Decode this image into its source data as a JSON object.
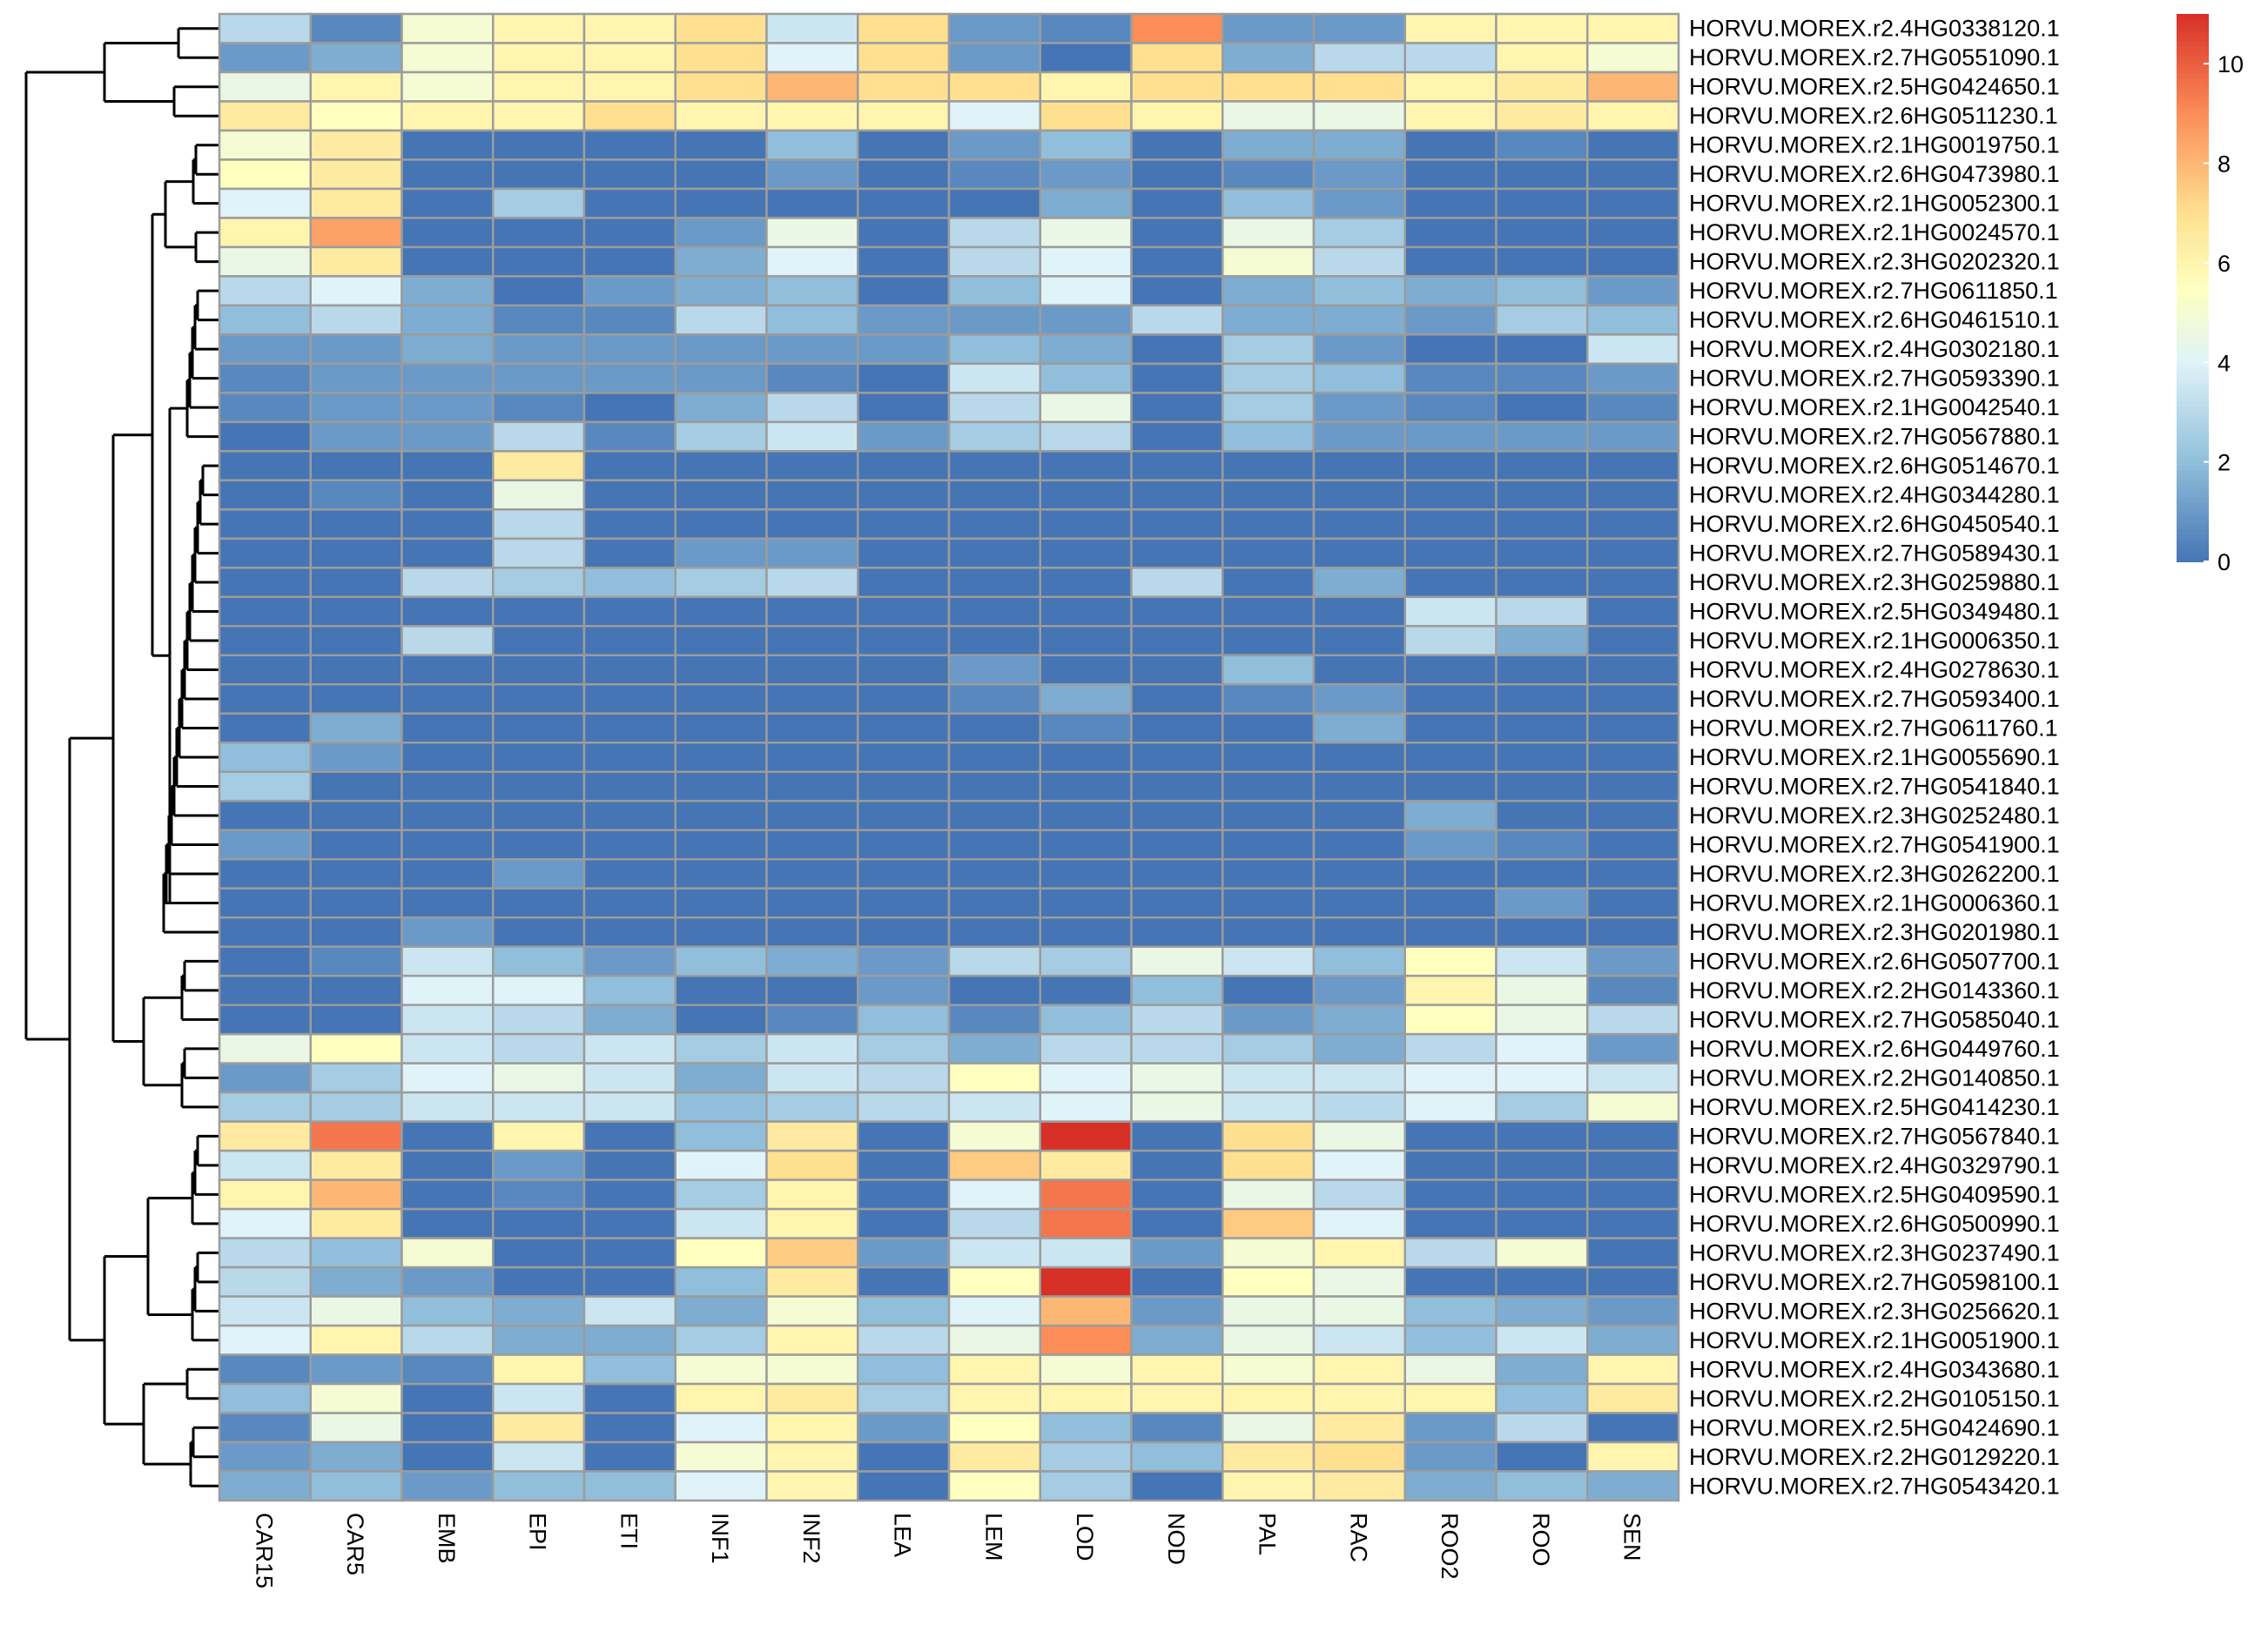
{
  "chart_data": {
    "type": "heatmap",
    "title": "",
    "columns": [
      "CAR15",
      "CAR5",
      "EMB",
      "EPI",
      "ETI",
      "INF1",
      "INF2",
      "LEA",
      "LEM",
      "LOD",
      "NOD",
      "PAL",
      "RAC",
      "ROO2",
      "ROO",
      "SEN"
    ],
    "rows": [
      "HORVU.MOREX.r2.4HG0338120.1",
      "HORVU.MOREX.r2.7HG0551090.1",
      "HORVU.MOREX.r2.5HG0424650.1",
      "HORVU.MOREX.r2.6HG0511230.1",
      "HORVU.MOREX.r2.1HG0019750.1",
      "HORVU.MOREX.r2.6HG0473980.1",
      "HORVU.MOREX.r2.1HG0052300.1",
      "HORVU.MOREX.r2.1HG0024570.1",
      "HORVU.MOREX.r2.3HG0202320.1",
      "HORVU.MOREX.r2.7HG0611850.1",
      "HORVU.MOREX.r2.6HG0461510.1",
      "HORVU.MOREX.r2.4HG0302180.1",
      "HORVU.MOREX.r2.7HG0593390.1",
      "HORVU.MOREX.r2.1HG0042540.1",
      "HORVU.MOREX.r2.7HG0567880.1",
      "HORVU.MOREX.r2.6HG0514670.1",
      "HORVU.MOREX.r2.4HG0344280.1",
      "HORVU.MOREX.r2.6HG0450540.1",
      "HORVU.MOREX.r2.7HG0589430.1",
      "HORVU.MOREX.r2.3HG0259880.1",
      "HORVU.MOREX.r2.5HG0349480.1",
      "HORVU.MOREX.r2.1HG0006350.1",
      "HORVU.MOREX.r2.4HG0278630.1",
      "HORVU.MOREX.r2.7HG0593400.1",
      "HORVU.MOREX.r2.7HG0611760.1",
      "HORVU.MOREX.r2.1HG0055690.1",
      "HORVU.MOREX.r2.7HG0541840.1",
      "HORVU.MOREX.r2.3HG0252480.1",
      "HORVU.MOREX.r2.7HG0541900.1",
      "HORVU.MOREX.r2.3HG0262200.1",
      "HORVU.MOREX.r2.1HG0006360.1",
      "HORVU.MOREX.r2.3HG0201980.1",
      "HORVU.MOREX.r2.6HG0507700.1",
      "HORVU.MOREX.r2.2HG0143360.1",
      "HORVU.MOREX.r2.7HG0585040.1",
      "HORVU.MOREX.r2.6HG0449760.1",
      "HORVU.MOREX.r2.2HG0140850.1",
      "HORVU.MOREX.r2.5HG0414230.1",
      "HORVU.MOREX.r2.7HG0567840.1",
      "HORVU.MOREX.r2.4HG0329790.1",
      "HORVU.MOREX.r2.5HG0409590.1",
      "HORVU.MOREX.r2.6HG0500990.1",
      "HORVU.MOREX.r2.3HG0237490.1",
      "HORVU.MOREX.r2.7HG0598100.1",
      "HORVU.MOREX.r2.3HG0256620.1",
      "HORVU.MOREX.r2.1HG0051900.1",
      "HORVU.MOREX.r2.4HG0343680.1",
      "HORVU.MOREX.r2.2HG0105150.1",
      "HORVU.MOREX.r2.5HG0424690.1",
      "HORVU.MOREX.r2.2HG0129220.1",
      "HORVU.MOREX.r2.7HG0543420.1"
    ],
    "values": [
      [
        3,
        0.5,
        5,
        6,
        6,
        7,
        3.5,
        7,
        1,
        0.5,
        9,
        1,
        1,
        6,
        6,
        6
      ],
      [
        1,
        1.5,
        5,
        6,
        6,
        7,
        4,
        7,
        1,
        0,
        7,
        1.5,
        3,
        3,
        6,
        5
      ],
      [
        4.5,
        6,
        5,
        6,
        6,
        7,
        8,
        7,
        7,
        6,
        7,
        7,
        7,
        6,
        6.5,
        8
      ],
      [
        6.5,
        5.5,
        6,
        6,
        7,
        6,
        6,
        6,
        4,
        7,
        6,
        4.5,
        4.5,
        6,
        6.5,
        6
      ],
      [
        5,
        6.5,
        0,
        0,
        0,
        0,
        2,
        0,
        1,
        2,
        0,
        1.5,
        1.5,
        0,
        0.5,
        0
      ],
      [
        5.5,
        6.5,
        0,
        0,
        0,
        0,
        1,
        0,
        0.5,
        1,
        0,
        0.5,
        1,
        0,
        0,
        0
      ],
      [
        4,
        6.5,
        0,
        2.5,
        0,
        0,
        0,
        0,
        0,
        1.5,
        0,
        2,
        1,
        0,
        0,
        0
      ],
      [
        6,
        8.5,
        0,
        0,
        0,
        1,
        4.5,
        0,
        3,
        4.5,
        0,
        4.5,
        2.5,
        0,
        0,
        0
      ],
      [
        4.5,
        6.5,
        0,
        0,
        0,
        1.5,
        4,
        0,
        3,
        4,
        0,
        5,
        3,
        0,
        0,
        0
      ],
      [
        3,
        4,
        1.5,
        0,
        1,
        1.5,
        2,
        0,
        2,
        4,
        0,
        1.5,
        2,
        1.5,
        2,
        1
      ],
      [
        2,
        3,
        1.5,
        0.5,
        0.5,
        3,
        2,
        1,
        1,
        1,
        3,
        1.5,
        1.5,
        1,
        2.5,
        2
      ],
      [
        1,
        1,
        1.5,
        1,
        1,
        1,
        1,
        1,
        2,
        1.5,
        0,
        2.5,
        1,
        0,
        0,
        3.5
      ],
      [
        0.5,
        1,
        1,
        1,
        1,
        1,
        0.5,
        0,
        3.5,
        2,
        0,
        2.5,
        2,
        0.5,
        0.5,
        1
      ],
      [
        0.5,
        1,
        1,
        0.5,
        0,
        1.5,
        3,
        0,
        3,
        4.5,
        0,
        2.5,
        1,
        0.5,
        0,
        0.5
      ],
      [
        0,
        1,
        1,
        3,
        0.5,
        2.5,
        3.5,
        1,
        2.5,
        3,
        0,
        2,
        1,
        1,
        1,
        1
      ],
      [
        0,
        0,
        0,
        6.5,
        0,
        0,
        0,
        0,
        0,
        0,
        0,
        0,
        0,
        0,
        0,
        0
      ],
      [
        0,
        0.5,
        0,
        4.5,
        0,
        0,
        0,
        0,
        0,
        0,
        0,
        0,
        0,
        0,
        0,
        0
      ],
      [
        0,
        0,
        0,
        3,
        0,
        0,
        0,
        0,
        0,
        0,
        0,
        0,
        0,
        0,
        0,
        0
      ],
      [
        0,
        0,
        0,
        3,
        0,
        1,
        1,
        0,
        0,
        0,
        0,
        0,
        0,
        0,
        0,
        0
      ],
      [
        0,
        0,
        3,
        2.5,
        2,
        2.5,
        3,
        0,
        0,
        0,
        3,
        0,
        1.5,
        0,
        0,
        0
      ],
      [
        0,
        0,
        0,
        0,
        0,
        0,
        0,
        0,
        0,
        0,
        0,
        0,
        0,
        3.5,
        3,
        0
      ],
      [
        0,
        0,
        3,
        0,
        0,
        0,
        0,
        0,
        0,
        0,
        0,
        0,
        0,
        3,
        1.5,
        0
      ],
      [
        0,
        0,
        0,
        0,
        0,
        0,
        0,
        0,
        1,
        0,
        0,
        2,
        0,
        0,
        0,
        0
      ],
      [
        0,
        0,
        0,
        0,
        0,
        0,
        0,
        0,
        0.5,
        1.5,
        0,
        0.5,
        1,
        0,
        0,
        0
      ],
      [
        0,
        1.5,
        0,
        0,
        0,
        0,
        0,
        0,
        0,
        0.5,
        0,
        0,
        1.5,
        0,
        0,
        0
      ],
      [
        2,
        1,
        0,
        0,
        0,
        0,
        0,
        0,
        0,
        0,
        0,
        0,
        0,
        0,
        0,
        0
      ],
      [
        2.5,
        0,
        0,
        0,
        0,
        0,
        0,
        0,
        0,
        0,
        0,
        0,
        0,
        0,
        0,
        0
      ],
      [
        0,
        0,
        0,
        0,
        0,
        0,
        0,
        0,
        0,
        0,
        0,
        0,
        0,
        1.5,
        0,
        0
      ],
      [
        1,
        0,
        0,
        0,
        0,
        0,
        0,
        0,
        0,
        0,
        0,
        0,
        0,
        1,
        0.5,
        0
      ],
      [
        0,
        0,
        0,
        1,
        0,
        0,
        0,
        0,
        0,
        0,
        0,
        0,
        0,
        0,
        0,
        0
      ],
      [
        0,
        0,
        0,
        0,
        0,
        0,
        0,
        0,
        0,
        0,
        0,
        0,
        0,
        0,
        1,
        0
      ],
      [
        0,
        0,
        1,
        0,
        0,
        0,
        0,
        0,
        0,
        0,
        0,
        0,
        0,
        0,
        0,
        0
      ],
      [
        0,
        0.5,
        3.5,
        2,
        1,
        2,
        1.5,
        1,
        3,
        2.5,
        4.5,
        3.5,
        2,
        5.5,
        3.5,
        1
      ],
      [
        0,
        0,
        4,
        4,
        2,
        0,
        0,
        1,
        0,
        0,
        2,
        0,
        1,
        6,
        4.5,
        0.5
      ],
      [
        0,
        0,
        3.5,
        3,
        1.5,
        0,
        0.5,
        2,
        0.5,
        2,
        3,
        1,
        1.5,
        5.5,
        4.5,
        3
      ],
      [
        4.5,
        5.5,
        3.5,
        3,
        3.5,
        2.5,
        3.5,
        2.5,
        1.5,
        3,
        3,
        2.5,
        1.5,
        3,
        4,
        1
      ],
      [
        1,
        2.5,
        4,
        4.5,
        3.5,
        1.5,
        3.5,
        3,
        5.5,
        4,
        4.5,
        3.5,
        3.5,
        4,
        4,
        3.5
      ],
      [
        2.5,
        2.5,
        3.5,
        3.5,
        3.5,
        2,
        2.5,
        3,
        3.5,
        4,
        4.5,
        3.5,
        3,
        4,
        2.5,
        5
      ],
      [
        6.5,
        9.5,
        0,
        6,
        0,
        2,
        6.5,
        0,
        5,
        11,
        0,
        7,
        4.5,
        0,
        0,
        0
      ],
      [
        3.5,
        6.5,
        0,
        1,
        0,
        4,
        7,
        0,
        7.5,
        6.5,
        0,
        7,
        4,
        0,
        0,
        0
      ],
      [
        6,
        8,
        0,
        0.5,
        0,
        2.5,
        6,
        0,
        4,
        9.5,
        0,
        4.5,
        3,
        0,
        0,
        0
      ],
      [
        4,
        6.5,
        0,
        0,
        0,
        3.5,
        6,
        0,
        3,
        9.5,
        0,
        7.5,
        4,
        0,
        0,
        0
      ],
      [
        3,
        2,
        5,
        0,
        0,
        5.5,
        7.5,
        1,
        3.5,
        3.5,
        1,
        5,
        6,
        3,
        5,
        0
      ],
      [
        3,
        1.5,
        1,
        0,
        0,
        2,
        6.5,
        0,
        5.5,
        11,
        0,
        5.5,
        4.5,
        0,
        0,
        0
      ],
      [
        3.5,
        4.5,
        2,
        1.5,
        3.5,
        1.5,
        5,
        2,
        4,
        8,
        1,
        4.5,
        4.5,
        2,
        1.5,
        1
      ],
      [
        4,
        6,
        3,
        1.5,
        1.5,
        2.5,
        6,
        3,
        4.5,
        9,
        1.5,
        4.5,
        3.5,
        2,
        3.5,
        1.5
      ],
      [
        0.5,
        1,
        0.5,
        6,
        2,
        5,
        5,
        2,
        6,
        5,
        6,
        5,
        6,
        4.5,
        1.5,
        6
      ],
      [
        2,
        5,
        0,
        3.5,
        0,
        6,
        6.5,
        2.5,
        6,
        6,
        6,
        6,
        6,
        6,
        2,
        6.5
      ],
      [
        0.5,
        4.5,
        0,
        6.5,
        0,
        4,
        6,
        1,
        5.5,
        2,
        0.5,
        4.5,
        6.5,
        1,
        3,
        0
      ],
      [
        1,
        1.5,
        0,
        3.5,
        0,
        5,
        6,
        0,
        6.5,
        2.5,
        2,
        6.5,
        7,
        1,
        0,
        6
      ],
      [
        1.5,
        2,
        1,
        2,
        2,
        4,
        6,
        0,
        5.5,
        2.5,
        0,
        6,
        6.5,
        1.5,
        2,
        1.5
      ]
    ],
    "color_scale": {
      "min": 0,
      "max": 11,
      "stops": [
        "#4575b4",
        "#91bfdb",
        "#e0f3f8",
        "#ffffbf",
        "#fee090",
        "#fc8d59",
        "#d73027"
      ],
      "stop_values": [
        0,
        2,
        4,
        5.5,
        7,
        9,
        11
      ],
      "ticks": [
        0,
        2,
        4,
        6,
        8,
        10
      ]
    },
    "legend_position": "top-right",
    "row_dendrogram": "left",
    "grid": true
  }
}
